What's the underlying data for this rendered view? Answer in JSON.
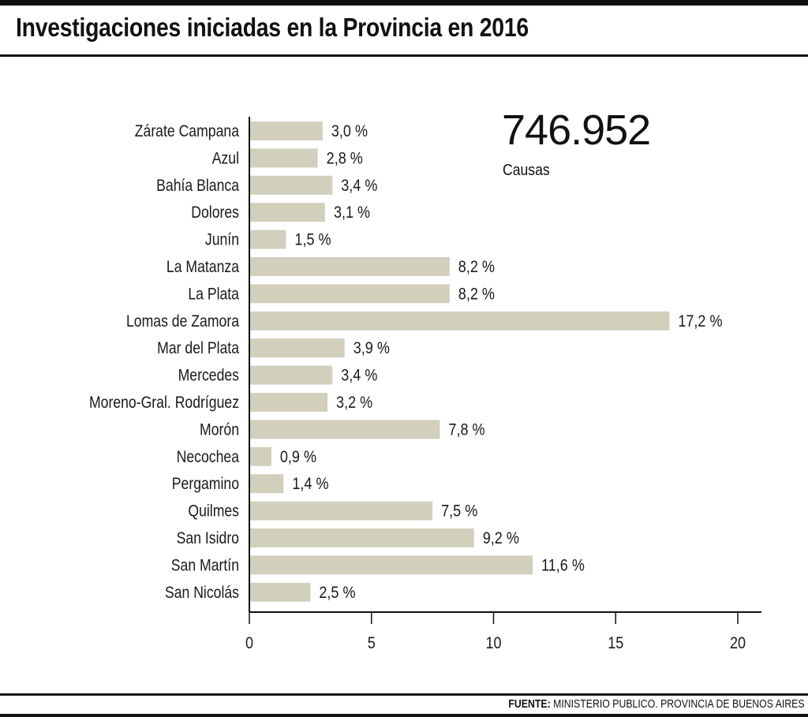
{
  "title": "Investigaciones iniciadas en la Provincia en 2016",
  "highlight": {
    "value": "746.952",
    "label": "Causas"
  },
  "source": {
    "prefix": "FUENTE:",
    "text": "MINISTERIO PUBLICO. PROVINCIA DE BUENOS AIRES"
  },
  "colors": {
    "bar": "#d2d0bd",
    "axis": "#111111",
    "text": "#1a1a1a"
  },
  "chart_data": {
    "type": "bar",
    "orientation": "horizontal",
    "categories": [
      "Zárate Campana",
      "Azul",
      "Bahía Blanca",
      "Dolores",
      "Junín",
      "La Matanza",
      "La Plata",
      "Lomas de Zamora",
      "Mar del Plata",
      "Mercedes",
      "Moreno-Gral. Rodríguez",
      "Morón",
      "Necochea",
      "Pergamino",
      "Quilmes",
      "San Isidro",
      "San Martín",
      "San Nicolás"
    ],
    "values": [
      3.0,
      2.8,
      3.4,
      3.1,
      1.5,
      8.2,
      8.2,
      17.2,
      3.9,
      3.4,
      3.2,
      7.8,
      0.9,
      1.4,
      7.5,
      9.2,
      11.6,
      2.5
    ],
    "value_labels": [
      "3,0 %",
      "2,8 %",
      "3,4 %",
      "3,1 %",
      "1,5 %",
      "8,2 %",
      "8,2 %",
      "17,2 %",
      "3,9 %",
      "3,4 %",
      "3,2 %",
      "7,8 %",
      "0,9 %",
      "1,4 %",
      "7,5 %",
      "9,2 %",
      "11,6 %",
      "2,5 %"
    ],
    "xlim": [
      0,
      20
    ],
    "xticks": [
      0,
      5,
      10,
      15,
      20
    ],
    "xtick_labels": [
      "0",
      "5",
      "10",
      "15",
      "20"
    ],
    "grid": false,
    "legend": "none"
  }
}
